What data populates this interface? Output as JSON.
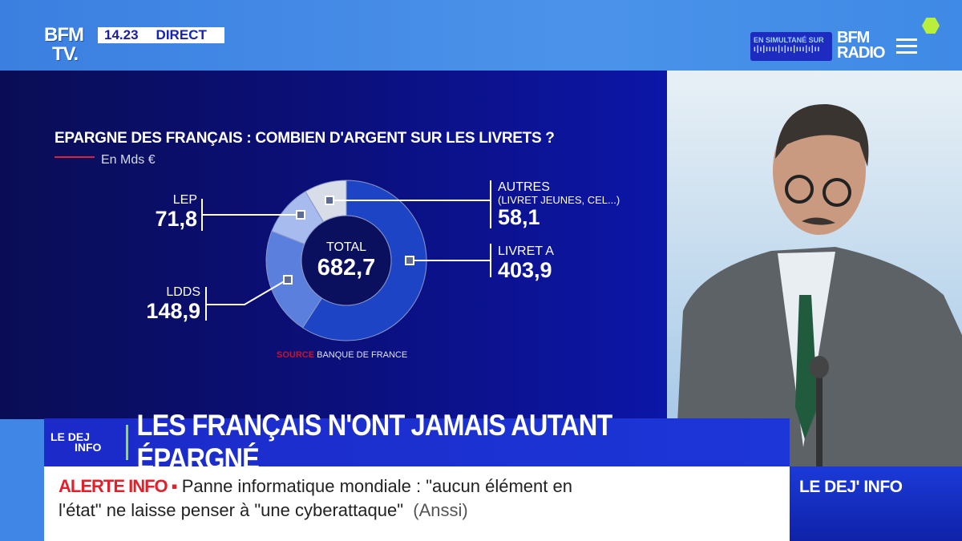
{
  "channel": {
    "logo": "BFM TV.",
    "logo_line1": "BFM",
    "logo_line2": "TV.",
    "time": "14.23",
    "live_label": "DIRECT"
  },
  "radio": {
    "simulcast_label": "EN SIMULTANÉ SUR",
    "logo_line1": "BFM",
    "logo_line2": "RADIO"
  },
  "chart_data": {
    "type": "pie",
    "style": "donut",
    "title": "EPARGNE DES FRANÇAIS : COMBIEN D'ARGENT SUR LES LIVRETS ?",
    "unit": "En Mds €",
    "center_label": "TOTAL",
    "total": "682,7",
    "slices": [
      {
        "name": "LIVRET A",
        "value": 403.9,
        "label": "403,9",
        "color": "#1e44c6"
      },
      {
        "name": "LDDS",
        "value": 148.9,
        "label": "148,9",
        "color": "#5a7fdc"
      },
      {
        "name": "LEP",
        "value": 71.8,
        "label": "71,8",
        "color": "#a7bbee"
      },
      {
        "name": "AUTRES",
        "sublabel": "(LIVRET JEUNES, CEL...)",
        "value": 58.1,
        "label": "58,1",
        "color": "#d9dde8"
      }
    ],
    "source_label": "SOURCE",
    "source": "BANQUE DE FRANCE"
  },
  "banner": {
    "show_logo_line1": "LE DEJ",
    "show_logo_line2": "INFO",
    "headline": "LES FRANÇAIS N'ONT JAMAIS AUTANT ÉPARGNÉ"
  },
  "ticker": {
    "alert_label": "ALERTE INFO ▪",
    "line1": "Panne informatique mondiale : \"aucun élément en",
    "line2": "l'état\" ne laisse penser à \"une cyberattaque\"",
    "source": "(Anssi)"
  },
  "show_box": {
    "label": "LE DEJ' INFO"
  },
  "colors": {
    "accent_red": "#e3202a",
    "banner_blue": "#1b2ac8",
    "green": "#8ee04b"
  }
}
